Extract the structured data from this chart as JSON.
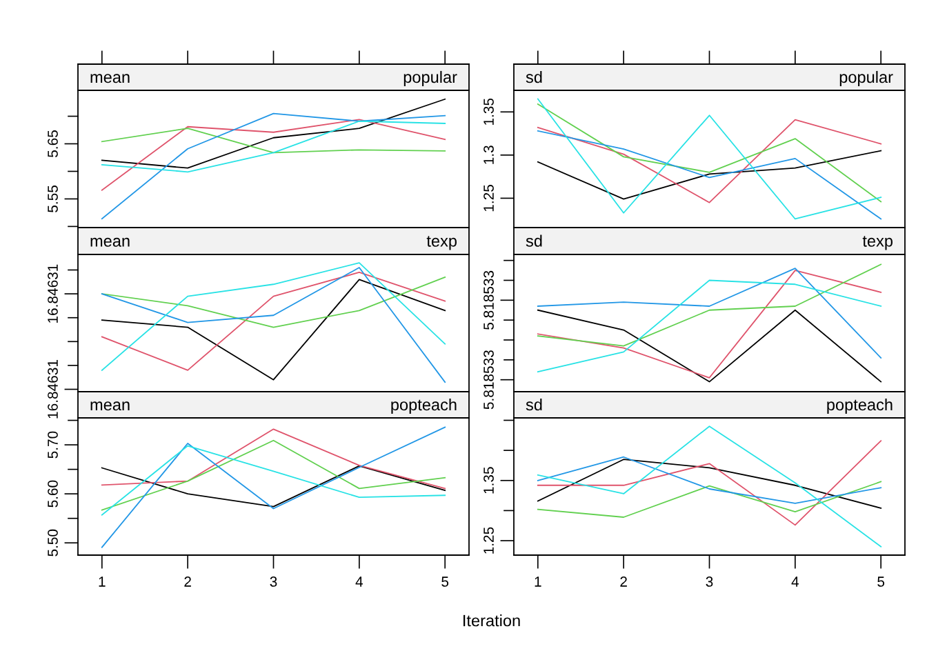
{
  "chart_data": [
    {
      "type": "line",
      "title": "mean",
      "subtitle": "popular",
      "xlim": [
        0.72,
        5.28
      ],
      "xticks": [
        1,
        2,
        3,
        4,
        5
      ],
      "ylim": [
        5.498,
        5.747
      ],
      "yticks": [
        {
          "value": 5.5,
          "label": null
        },
        {
          "value": 5.55,
          "label": "5.55"
        },
        {
          "value": 5.6,
          "label": null
        },
        {
          "value": 5.65,
          "label": "5.65"
        },
        {
          "value": 5.7,
          "label": null
        }
      ],
      "tick_labels": "y",
      "grid": false,
      "x": [
        1,
        2,
        3,
        4,
        5
      ],
      "series": [
        {
          "color": "#000000",
          "values": [
            5.62,
            5.606,
            5.661,
            5.678,
            5.731
          ]
        },
        {
          "color": "#DF536B",
          "values": [
            5.566,
            5.681,
            5.671,
            5.694,
            5.658
          ]
        },
        {
          "color": "#61D04F",
          "values": [
            5.654,
            5.678,
            5.634,
            5.639,
            5.637
          ]
        },
        {
          "color": "#2297E6",
          "values": [
            5.514,
            5.641,
            5.705,
            5.691,
            5.701
          ]
        },
        {
          "color": "#28E2E5",
          "values": [
            5.612,
            5.599,
            5.634,
            5.691,
            5.687
          ]
        }
      ]
    },
    {
      "type": "line",
      "title": "sd",
      "subtitle": "popular",
      "xlim": [
        0.72,
        5.28
      ],
      "xticks": [
        1,
        2,
        3,
        4,
        5
      ],
      "ylim": [
        1.216,
        1.375
      ],
      "yticks": [
        1.25,
        1.3,
        1.35
      ],
      "tick_labels": "y",
      "grid": false,
      "x": [
        1,
        2,
        3,
        4,
        5
      ],
      "series": [
        {
          "color": "#000000",
          "values": [
            1.292,
            1.249,
            1.278,
            1.285,
            1.305
          ]
        },
        {
          "color": "#DF536B",
          "values": [
            1.332,
            1.301,
            1.245,
            1.341,
            1.313
          ]
        },
        {
          "color": "#61D04F",
          "values": [
            1.359,
            1.298,
            1.28,
            1.319,
            1.246
          ]
        },
        {
          "color": "#2297E6",
          "values": [
            1.328,
            1.307,
            1.274,
            1.296,
            1.226
          ]
        },
        {
          "color": "#28E2E5",
          "values": [
            1.365,
            1.233,
            1.346,
            1.226,
            1.251
          ]
        }
      ]
    },
    {
      "type": "line",
      "title": "mean",
      "subtitle": "texp",
      "xlim": [
        0.72,
        5.28
      ],
      "xticks": [
        1,
        2,
        3,
        4,
        5
      ],
      "ylim": [
        16.8463079,
        16.84631365
      ],
      "yticks": [
        {
          "value": 16.846308,
          "label": "16.84631"
        },
        {
          "value": 16.846309,
          "label": null
        },
        {
          "value": 16.84631,
          "label": null
        },
        {
          "value": 16.846311,
          "label": null
        },
        {
          "value": 16.846312,
          "label": "16.84631"
        },
        {
          "value": 16.846313,
          "label": null
        }
      ],
      "tick_labels": "y",
      "grid": false,
      "x": [
        1,
        2,
        3,
        4,
        5
      ],
      "series": [
        {
          "color": "#000000",
          "values": [
            16.8463109,
            16.8463106,
            16.8463084,
            16.8463126,
            16.8463113
          ]
        },
        {
          "color": "#DF536B",
          "values": [
            16.8463102,
            16.8463088,
            16.8463119,
            16.8463129,
            16.8463117
          ]
        },
        {
          "color": "#61D04F",
          "values": [
            16.846312,
            16.8463115,
            16.8463106,
            16.8463113,
            16.8463127
          ]
        },
        {
          "color": "#2297E6",
          "values": [
            16.846312,
            16.8463108,
            16.8463111,
            16.8463131,
            16.8463083
          ]
        },
        {
          "color": "#28E2E5",
          "values": [
            16.8463088,
            16.8463119,
            16.8463124,
            16.8463133,
            16.8463099
          ]
        }
      ]
    },
    {
      "type": "line",
      "title": "sd",
      "subtitle": "texp",
      "xlim": [
        0.72,
        5.28
      ],
      "xticks": [
        1,
        2,
        3,
        4,
        5
      ],
      "ylim": [
        5.81853254,
        5.81853323
      ],
      "yticks": [
        {
          "value": 5.8185326,
          "label": "5.818533"
        },
        {
          "value": 5.8185327,
          "label": null
        },
        {
          "value": 5.8185328,
          "label": null
        },
        {
          "value": 5.8185329,
          "label": null
        },
        {
          "value": 5.818533,
          "label": "5.818533"
        },
        {
          "value": 5.8185331,
          "label": null
        },
        {
          "value": 5.8185332,
          "label": null
        }
      ],
      "tick_labels": "y",
      "grid": false,
      "x": [
        1,
        2,
        3,
        4,
        5
      ],
      "series": [
        {
          "color": "#000000",
          "values": [
            5.81853295,
            5.81853285,
            5.81853259,
            5.81853295,
            5.81853259
          ]
        },
        {
          "color": "#DF536B",
          "values": [
            5.81853283,
            5.81853276,
            5.81853261,
            5.81853315,
            5.81853304
          ]
        },
        {
          "color": "#61D04F",
          "values": [
            5.81853282,
            5.81853277,
            5.81853295,
            5.81853297,
            5.81853318
          ]
        },
        {
          "color": "#2297E6",
          "values": [
            5.81853297,
            5.81853299,
            5.81853297,
            5.81853316,
            5.81853271
          ]
        },
        {
          "color": "#28E2E5",
          "values": [
            5.81853264,
            5.81853274,
            5.8185331,
            5.81853308,
            5.81853297
          ]
        }
      ]
    },
    {
      "type": "line",
      "title": "mean",
      "subtitle": "popteach",
      "xlabel": "Iteration",
      "xlim": [
        0.72,
        5.28
      ],
      "xticks": [
        1,
        2,
        3,
        4,
        5
      ],
      "ylim": [
        5.475,
        5.755
      ],
      "yticks": [
        {
          "value": 5.5,
          "label": "5.50"
        },
        {
          "value": 5.55,
          "label": null
        },
        {
          "value": 5.6,
          "label": "5.60"
        },
        {
          "value": 5.65,
          "label": null
        },
        {
          "value": 5.7,
          "label": "5.70"
        },
        {
          "value": 5.75,
          "label": null
        }
      ],
      "grid": false,
      "x": [
        1,
        2,
        3,
        4,
        5
      ],
      "series": [
        {
          "color": "#000000",
          "values": [
            5.653,
            5.6,
            5.574,
            5.657,
            5.607
          ]
        },
        {
          "color": "#DF536B",
          "values": [
            5.618,
            5.626,
            5.732,
            5.658,
            5.611
          ]
        },
        {
          "color": "#61D04F",
          "values": [
            5.567,
            5.626,
            5.709,
            5.611,
            5.633
          ]
        },
        {
          "color": "#2297E6",
          "values": [
            5.491,
            5.703,
            5.57,
            5.654,
            5.736
          ]
        },
        {
          "color": "#28E2E5",
          "values": [
            5.557,
            5.698,
            5.646,
            5.593,
            5.597
          ]
        }
      ]
    },
    {
      "type": "line",
      "title": "sd",
      "subtitle": "popteach",
      "xlim": [
        0.72,
        5.28
      ],
      "xticks": [
        1,
        2,
        3,
        4,
        5
      ],
      "ylim": [
        1.226,
        1.454
      ],
      "yticks": [
        {
          "value": 1.25,
          "label": "1.25"
        },
        {
          "value": 1.3,
          "label": null
        },
        {
          "value": 1.35,
          "label": "1.35"
        },
        {
          "value": 1.4,
          "label": null
        },
        {
          "value": 1.45,
          "label": null
        }
      ],
      "grid": false,
      "x": [
        1,
        2,
        3,
        4,
        5
      ],
      "series": [
        {
          "color": "#000000",
          "values": [
            1.316,
            1.385,
            1.371,
            1.342,
            1.304
          ]
        },
        {
          "color": "#DF536B",
          "values": [
            1.342,
            1.342,
            1.378,
            1.276,
            1.416
          ]
        },
        {
          "color": "#61D04F",
          "values": [
            1.302,
            1.289,
            1.341,
            1.298,
            1.348
          ]
        },
        {
          "color": "#2297E6",
          "values": [
            1.35,
            1.389,
            1.336,
            1.312,
            1.338
          ]
        },
        {
          "color": "#28E2E5",
          "values": [
            1.359,
            1.328,
            1.44,
            1.346,
            1.24
          ]
        }
      ]
    }
  ]
}
